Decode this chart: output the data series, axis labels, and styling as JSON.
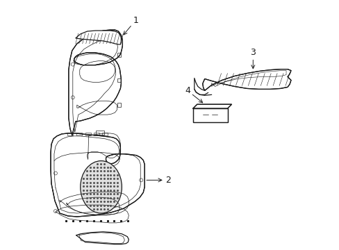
{
  "background_color": "#ffffff",
  "fig_width": 4.89,
  "fig_height": 3.6,
  "dpi": 100,
  "line_color": "#1a1a1a",
  "lw": 0.9,
  "tlw": 0.5,
  "fs": 8
}
